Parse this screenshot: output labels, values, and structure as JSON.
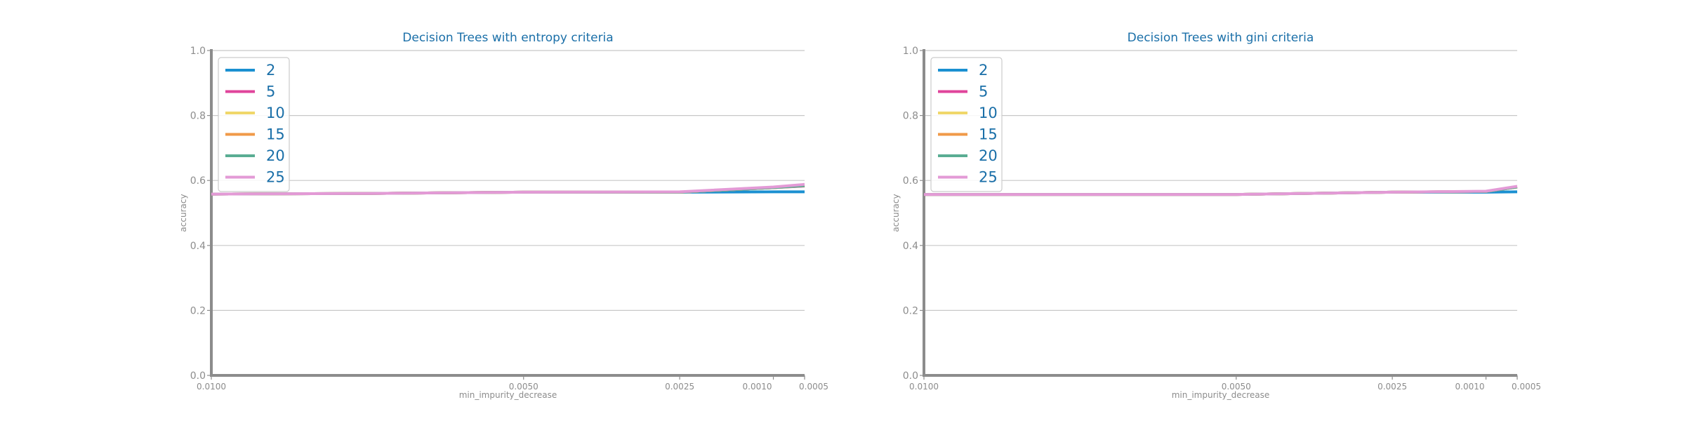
{
  "colors": {
    "title": "#1a6fa8",
    "axis": "#8c8c8c",
    "grid": "#c8c8c8",
    "tick_label": "#8c8c8c",
    "legend_text": "#1a6fa8",
    "legend_border": "#cccccc"
  },
  "chart_data": [
    {
      "type": "line",
      "title": "Decision Trees with entropy criteria",
      "xlabel": "min_impurity_decrease",
      "ylabel": "accuracy",
      "x": [
        0.01,
        0.0075,
        0.005,
        0.0025,
        0.001,
        0.0005
      ],
      "xlim": [
        0.01,
        0.0005
      ],
      "xtick_values": [
        0.01,
        0.005,
        0.0025,
        0.001,
        0.0005
      ],
      "xtick_labels": [
        "0.0100",
        "0.0050",
        "0.0025",
        "0.0010",
        "0.0005"
      ],
      "ylim": [
        0,
        1.0
      ],
      "ytick_labels": [
        "0.0",
        "0.2",
        "0.4",
        "0.6",
        "0.8",
        "1.0"
      ],
      "grid": "horizontal",
      "legend_position": "top-left",
      "series": [
        {
          "name": "2",
          "color": "#1b90d1",
          "values": [
            0.558,
            0.56,
            0.564,
            0.564,
            0.565,
            0.565
          ]
        },
        {
          "name": "5",
          "color": "#e0449b",
          "values": [
            0.558,
            0.56,
            0.564,
            0.564,
            0.578,
            0.583
          ]
        },
        {
          "name": "10",
          "color": "#f0d76a",
          "values": [
            0.558,
            0.56,
            0.564,
            0.564,
            0.578,
            0.584
          ]
        },
        {
          "name": "15",
          "color": "#f09a48",
          "values": [
            0.558,
            0.56,
            0.564,
            0.564,
            0.578,
            0.584
          ]
        },
        {
          "name": "20",
          "color": "#5aad93",
          "values": [
            0.558,
            0.56,
            0.564,
            0.564,
            0.578,
            0.584
          ]
        },
        {
          "name": "25",
          "color": "#e39ad6",
          "values": [
            0.558,
            0.56,
            0.564,
            0.565,
            0.58,
            0.588
          ]
        }
      ]
    },
    {
      "type": "line",
      "title": "Decision Trees with gini criteria",
      "xlabel": "min_impurity_decrease",
      "ylabel": "accuracy",
      "x": [
        0.01,
        0.0075,
        0.005,
        0.0025,
        0.001,
        0.0005
      ],
      "xlim": [
        0.01,
        0.0005
      ],
      "xtick_values": [
        0.01,
        0.005,
        0.0025,
        0.001,
        0.0005
      ],
      "xtick_labels": [
        "0.0100",
        "0.0050",
        "0.0025",
        "0.0010",
        "0.0005"
      ],
      "ylim": [
        0,
        1.0
      ],
      "ytick_labels": [
        "0.0",
        "0.2",
        "0.4",
        "0.6",
        "0.8",
        "1.0"
      ],
      "grid": "horizontal",
      "legend_position": "top-left",
      "series": [
        {
          "name": "2",
          "color": "#1b90d1",
          "values": [
            0.557,
            0.557,
            0.557,
            0.564,
            0.564,
            0.565
          ]
        },
        {
          "name": "5",
          "color": "#e0449b",
          "values": [
            0.557,
            0.557,
            0.557,
            0.564,
            0.566,
            0.58
          ]
        },
        {
          "name": "10",
          "color": "#f0d76a",
          "values": [
            0.557,
            0.557,
            0.557,
            0.564,
            0.566,
            0.58
          ]
        },
        {
          "name": "15",
          "color": "#f09a48",
          "values": [
            0.557,
            0.557,
            0.557,
            0.564,
            0.566,
            0.58
          ]
        },
        {
          "name": "20",
          "color": "#5aad93",
          "values": [
            0.557,
            0.557,
            0.557,
            0.564,
            0.566,
            0.58
          ]
        },
        {
          "name": "25",
          "color": "#e39ad6",
          "values": [
            0.557,
            0.557,
            0.557,
            0.564,
            0.567,
            0.582
          ]
        }
      ]
    }
  ]
}
